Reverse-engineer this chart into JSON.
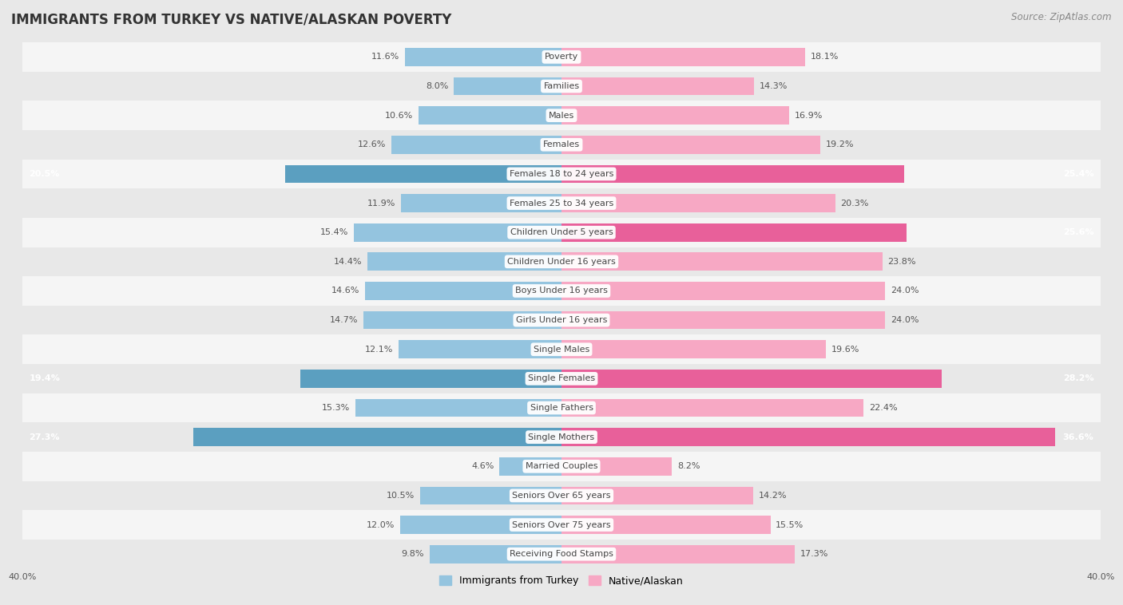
{
  "title": "IMMIGRANTS FROM TURKEY VS NATIVE/ALASKAN POVERTY",
  "source": "Source: ZipAtlas.com",
  "categories": [
    "Poverty",
    "Families",
    "Males",
    "Females",
    "Females 18 to 24 years",
    "Females 25 to 34 years",
    "Children Under 5 years",
    "Children Under 16 years",
    "Boys Under 16 years",
    "Girls Under 16 years",
    "Single Males",
    "Single Females",
    "Single Fathers",
    "Single Mothers",
    "Married Couples",
    "Seniors Over 65 years",
    "Seniors Over 75 years",
    "Receiving Food Stamps"
  ],
  "turkey_values": [
    11.6,
    8.0,
    10.6,
    12.6,
    20.5,
    11.9,
    15.4,
    14.4,
    14.6,
    14.7,
    12.1,
    19.4,
    15.3,
    27.3,
    4.6,
    10.5,
    12.0,
    9.8
  ],
  "native_values": [
    18.1,
    14.3,
    16.9,
    19.2,
    25.4,
    20.3,
    25.6,
    23.8,
    24.0,
    24.0,
    19.6,
    28.2,
    22.4,
    36.6,
    8.2,
    14.2,
    15.5,
    17.3
  ],
  "turkey_color": "#94c4df",
  "native_color": "#f7a8c4",
  "turkey_highlight_color": "#5b9fc0",
  "native_highlight_color": "#e8609a",
  "turkey_highlight_indices": [
    4,
    11,
    13
  ],
  "native_highlight_indices": [
    4,
    6,
    11,
    13
  ],
  "axis_limit": 40.0,
  "bar_height": 0.62,
  "background_color": "#e8e8e8",
  "stripe_color": "#f5f5f5",
  "title_fontsize": 12,
  "source_fontsize": 8.5,
  "cat_fontsize": 8,
  "value_fontsize": 8,
  "legend_label_turkey": "Immigrants from Turkey",
  "legend_label_native": "Native/Alaskan"
}
